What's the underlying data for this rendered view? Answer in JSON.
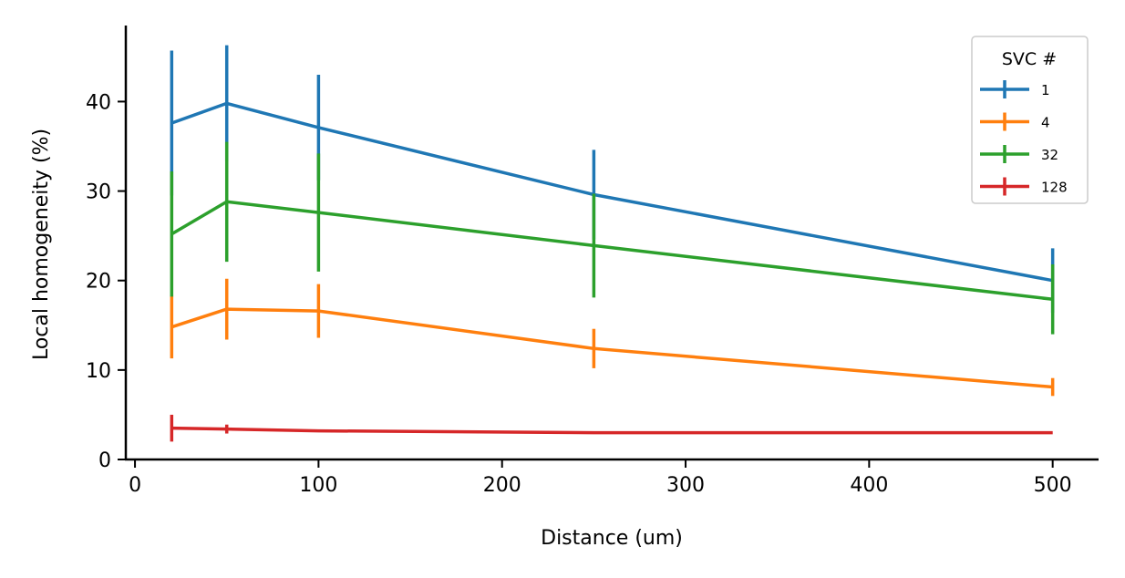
{
  "chart_data": {
    "type": "line",
    "xlabel": "Distance (um)",
    "ylabel": "Local homogeneity (%)",
    "xlim": [
      -5,
      525
    ],
    "ylim": [
      0,
      48.5
    ],
    "xticks": [
      0,
      100,
      200,
      300,
      400,
      500
    ],
    "yticks": [
      0,
      10,
      20,
      30,
      40
    ],
    "x": [
      20,
      50,
      100,
      250,
      500
    ],
    "grid": false,
    "legend": {
      "title": "SVC #",
      "position": "top-right"
    },
    "series": [
      {
        "name": "1",
        "color": "#1f77b4",
        "values": [
          37.6,
          39.8,
          37.1,
          29.6,
          20.0
        ],
        "errors": [
          8.1,
          6.5,
          5.9,
          5.0,
          3.6
        ]
      },
      {
        "name": "4",
        "color": "#ff7f0e",
        "values": [
          14.8,
          16.8,
          16.6,
          12.4,
          8.1
        ],
        "errors": [
          3.5,
          3.4,
          3.0,
          2.2,
          1.0
        ]
      },
      {
        "name": "32",
        "color": "#2ca02c",
        "values": [
          25.2,
          28.8,
          27.6,
          23.9,
          17.9
        ],
        "errors": [
          7.0,
          6.7,
          6.6,
          5.8,
          3.9
        ]
      },
      {
        "name": "128",
        "color": "#d62728",
        "values": [
          3.5,
          3.4,
          3.2,
          3.0,
          3.0
        ],
        "errors": [
          1.5,
          0.5,
          0.0,
          0.0,
          0.0
        ]
      }
    ]
  }
}
